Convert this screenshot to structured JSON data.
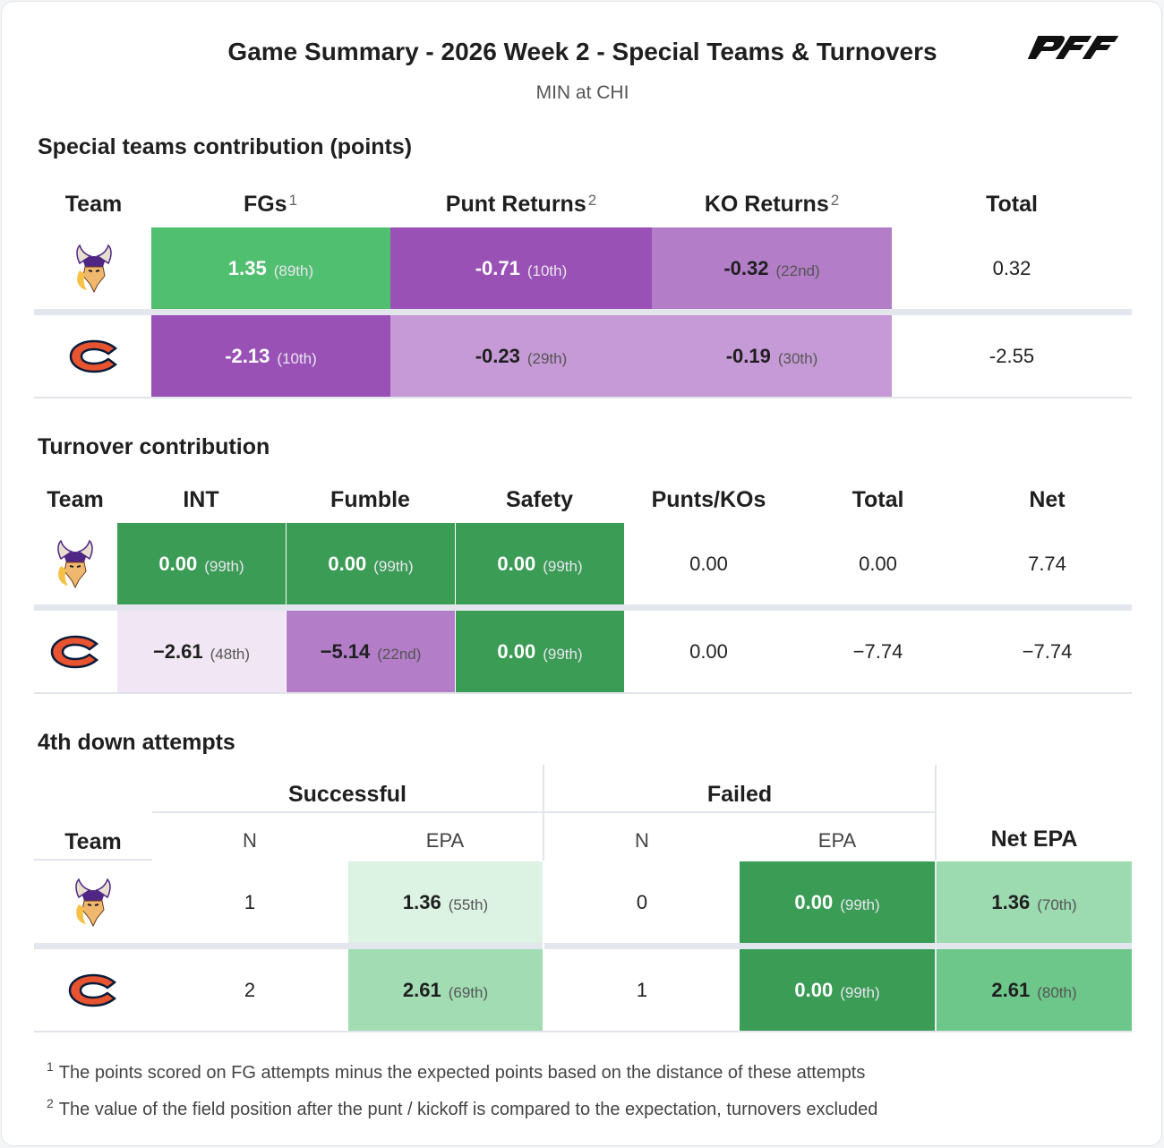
{
  "header": {
    "title": "Game Summary - 2026 Week 2 - Special Teams & Turnovers",
    "subtitle": "MIN at CHI",
    "logo_text": "PFF"
  },
  "colors": {
    "green_strong": "#3a9c55",
    "green_mid": "#50bf70",
    "purple_strong": "#9a51b6",
    "purple_mid": "#b37dc8",
    "purple_light": "#c69ad6",
    "purple_faint": "#f1e6f4"
  },
  "special_teams": {
    "title": "Special teams contribution (points)",
    "headers": {
      "team": "Team",
      "fgs": "FGs",
      "fgs_note": "1",
      "punt_returns": "Punt Returns",
      "punt_note": "2",
      "ko_returns": "KO Returns",
      "ko_note": "2",
      "total": "Total"
    },
    "rows": [
      {
        "team": "MIN",
        "logo": "vikings-logo-icon",
        "fgs": {
          "value": "1.35",
          "rank": "(89th)"
        },
        "punt": {
          "value": "-0.71",
          "rank": "(10th)"
        },
        "ko": {
          "value": "-0.32",
          "rank": "(22nd)"
        },
        "total": "0.32"
      },
      {
        "team": "CHI",
        "logo": "bears-logo-icon",
        "fgs": {
          "value": "-2.13",
          "rank": "(10th)"
        },
        "punt": {
          "value": "-0.23",
          "rank": "(29th)"
        },
        "ko": {
          "value": "-0.19",
          "rank": "(30th)"
        },
        "total": "-2.55"
      }
    ]
  },
  "turnovers": {
    "title": "Turnover contribution",
    "headers": {
      "team": "Team",
      "int": "INT",
      "fumble": "Fumble",
      "safety": "Safety",
      "punts_kos": "Punts/KOs",
      "total": "Total",
      "net": "Net"
    },
    "rows": [
      {
        "team": "MIN",
        "int": {
          "value": "0.00",
          "rank": "(99th)"
        },
        "fumble": {
          "value": "0.00",
          "rank": "(99th)"
        },
        "safety": {
          "value": "0.00",
          "rank": "(99th)"
        },
        "punts_kos": "0.00",
        "total": "0.00",
        "net": "7.74"
      },
      {
        "team": "CHI",
        "int": {
          "value": "−2.61",
          "rank": "(48th)"
        },
        "fumble": {
          "value": "−5.14",
          "rank": "(22nd)"
        },
        "safety": {
          "value": "0.00",
          "rank": "(99th)"
        },
        "punts_kos": "0.00",
        "total": "−7.74",
        "net": "−7.74"
      }
    ]
  },
  "fourth_down": {
    "title": "4th down attempts",
    "headers": {
      "successful": "Successful",
      "failed": "Failed",
      "team": "Team",
      "n": "N",
      "epa": "EPA",
      "net_epa": "Net EPA"
    },
    "rows": [
      {
        "team": "MIN",
        "succ_n": "1",
        "succ_epa": {
          "value": "1.36",
          "rank": "(55th)"
        },
        "fail_n": "0",
        "fail_epa": {
          "value": "0.00",
          "rank": "(99th)"
        },
        "net_epa": {
          "value": "1.36",
          "rank": "(70th)"
        }
      },
      {
        "team": "CHI",
        "succ_n": "2",
        "succ_epa": {
          "value": "2.61",
          "rank": "(69th)"
        },
        "fail_n": "1",
        "fail_epa": {
          "value": "0.00",
          "rank": "(99th)"
        },
        "net_epa": {
          "value": "2.61",
          "rank": "(80th)"
        }
      }
    ]
  },
  "footnotes": [
    {
      "mark": "1",
      "text": "The points scored on FG attempts minus the expected points based on the distance of these attempts"
    },
    {
      "mark": "2",
      "text": "The value of the field position after the punt / kickoff is compared to the expectation, turnovers excluded"
    }
  ]
}
